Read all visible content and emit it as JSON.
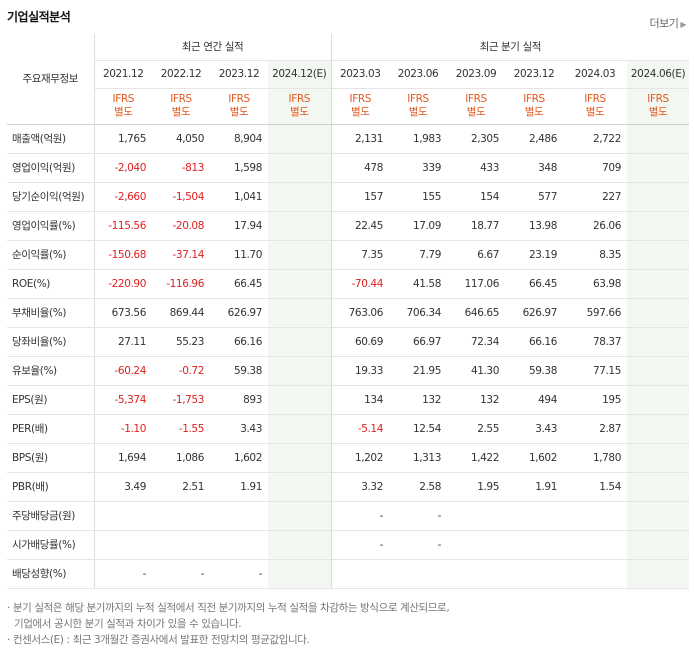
{
  "title": "기업실적분석",
  "more_label": "더보기",
  "header": {
    "row_label": "주요재무정보",
    "annual_group": "최근 연간 실적",
    "quarter_group": "최근 분기 실적",
    "annual_periods": [
      "2021.12",
      "2022.12",
      "2023.12",
      "2024.12(E)"
    ],
    "quarter_periods": [
      "2023.03",
      "2023.06",
      "2023.09",
      "2023.12",
      "2024.03",
      "2024.06(E)"
    ],
    "ifrs_top": "IFRS",
    "ifrs_bottom": "별도"
  },
  "rows": [
    {
      "label": "매출액(억원)",
      "annual": [
        "1,765",
        "4,050",
        "8,904",
        ""
      ],
      "quarter": [
        "2,131",
        "1,983",
        "2,305",
        "2,486",
        "2,722",
        ""
      ]
    },
    {
      "label": "영업이익(억원)",
      "annual": [
        "-2,040",
        "-813",
        "1,598",
        ""
      ],
      "quarter": [
        "478",
        "339",
        "433",
        "348",
        "709",
        ""
      ]
    },
    {
      "label": "당기순이익(억원)",
      "annual": [
        "-2,660",
        "-1,504",
        "1,041",
        ""
      ],
      "quarter": [
        "157",
        "155",
        "154",
        "577",
        "227",
        ""
      ]
    },
    {
      "label": "영업이익률(%)",
      "annual": [
        "-115.56",
        "-20.08",
        "17.94",
        ""
      ],
      "quarter": [
        "22.45",
        "17.09",
        "18.77",
        "13.98",
        "26.06",
        ""
      ]
    },
    {
      "label": "순이익률(%)",
      "annual": [
        "-150.68",
        "-37.14",
        "11.70",
        ""
      ],
      "quarter": [
        "7.35",
        "7.79",
        "6.67",
        "23.19",
        "8.35",
        ""
      ]
    },
    {
      "label": "ROE(%)",
      "annual": [
        "-220.90",
        "-116.96",
        "66.45",
        ""
      ],
      "quarter": [
        "-70.44",
        "41.58",
        "117.06",
        "66.45",
        "63.98",
        ""
      ]
    },
    {
      "label": "부채비율(%)",
      "annual": [
        "673.56",
        "869.44",
        "626.97",
        ""
      ],
      "quarter": [
        "763.06",
        "706.34",
        "646.65",
        "626.97",
        "597.66",
        ""
      ]
    },
    {
      "label": "당좌비율(%)",
      "annual": [
        "27.11",
        "55.23",
        "66.16",
        ""
      ],
      "quarter": [
        "60.69",
        "66.97",
        "72.34",
        "66.16",
        "78.37",
        ""
      ]
    },
    {
      "label": "유보율(%)",
      "annual": [
        "-60.24",
        "-0.72",
        "59.38",
        ""
      ],
      "quarter": [
        "19.33",
        "21.95",
        "41.30",
        "59.38",
        "77.15",
        ""
      ]
    },
    {
      "label": "EPS(원)",
      "annual": [
        "-5,374",
        "-1,753",
        "893",
        ""
      ],
      "quarter": [
        "134",
        "132",
        "132",
        "494",
        "195",
        ""
      ]
    },
    {
      "label": "PER(배)",
      "annual": [
        "-1.10",
        "-1.55",
        "3.43",
        ""
      ],
      "quarter": [
        "-5.14",
        "12.54",
        "2.55",
        "3.43",
        "2.87",
        ""
      ]
    },
    {
      "label": "BPS(원)",
      "annual": [
        "1,694",
        "1,086",
        "1,602",
        ""
      ],
      "quarter": [
        "1,202",
        "1,313",
        "1,422",
        "1,602",
        "1,780",
        ""
      ]
    },
    {
      "label": "PBR(배)",
      "annual": [
        "3.49",
        "2.51",
        "1.91",
        ""
      ],
      "quarter": [
        "3.32",
        "2.58",
        "1.95",
        "1.91",
        "1.54",
        ""
      ]
    },
    {
      "label": "주당배당금(원)",
      "annual": [
        "",
        "",
        "",
        ""
      ],
      "quarter": [
        "-",
        "-",
        "",
        "",
        "",
        ""
      ]
    },
    {
      "label": "시가배당률(%)",
      "annual": [
        "",
        "",
        "",
        ""
      ],
      "quarter": [
        "-",
        "-",
        "",
        "",
        "",
        ""
      ]
    },
    {
      "label": "배당성향(%)",
      "annual": [
        "-",
        "-",
        "-",
        ""
      ],
      "quarter": [
        "",
        "",
        "",
        "",
        "",
        ""
      ]
    }
  ],
  "notes": [
    "분기 실적은 해당 분기까지의 누적 실적에서 직전 분기까지의 누적 실적을 차감하는 방식으로 계산되므로,",
    "기업에서 공시한 분기 실적과 차이가 있을 수 있습니다.",
    "컨센서스(E) : 최근 3개월간 증권사에서 발표한 전망치의 평균값입니다."
  ],
  "colors": {
    "negative": "#e02020",
    "ifrs": "#e4571b",
    "estimate_bg": "#f2f8f1"
  }
}
